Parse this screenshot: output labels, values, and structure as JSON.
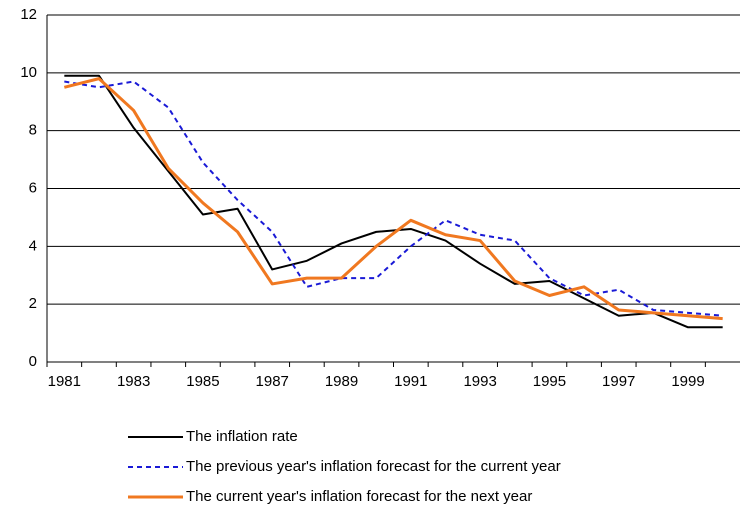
{
  "chart_data": {
    "type": "line",
    "categories": [
      "1981",
      null,
      "1983",
      null,
      "1985",
      null,
      "1987",
      null,
      "1989",
      null,
      "1991",
      null,
      "1993",
      null,
      "1995",
      null,
      "1997",
      null,
      "1999",
      null
    ],
    "series": [
      {
        "name": "The inflation rate",
        "color": "#000000",
        "dashed": false,
        "values": [
          9.9,
          9.9,
          8.1,
          6.6,
          5.1,
          5.3,
          3.2,
          3.5,
          4.1,
          4.5,
          4.6,
          4.2,
          3.4,
          2.7,
          2.8,
          2.2,
          1.6,
          1.7,
          1.2,
          1.2
        ]
      },
      {
        "name": "The previous year's inflation forecast for the current year",
        "color": "#1a1ad6",
        "dashed": true,
        "values": [
          9.7,
          9.5,
          9.7,
          8.8,
          6.9,
          5.6,
          4.5,
          2.6,
          2.9,
          2.9,
          4.0,
          4.9,
          4.4,
          4.2,
          2.9,
          2.3,
          2.5,
          1.8,
          1.7,
          1.6
        ]
      },
      {
        "name": "The current year's inflation forecast for the next year",
        "color": "#f07820",
        "dashed": false,
        "values": [
          9.5,
          9.8,
          8.7,
          6.7,
          5.5,
          4.5,
          2.7,
          2.9,
          2.9,
          4.0,
          4.9,
          4.4,
          4.2,
          2.8,
          2.3,
          2.6,
          1.8,
          1.7,
          1.6,
          1.5
        ]
      }
    ],
    "ylim": [
      0,
      12
    ],
    "yticks": [
      0,
      2,
      4,
      6,
      8,
      10,
      12
    ],
    "grid": true,
    "legend": "bottom"
  }
}
